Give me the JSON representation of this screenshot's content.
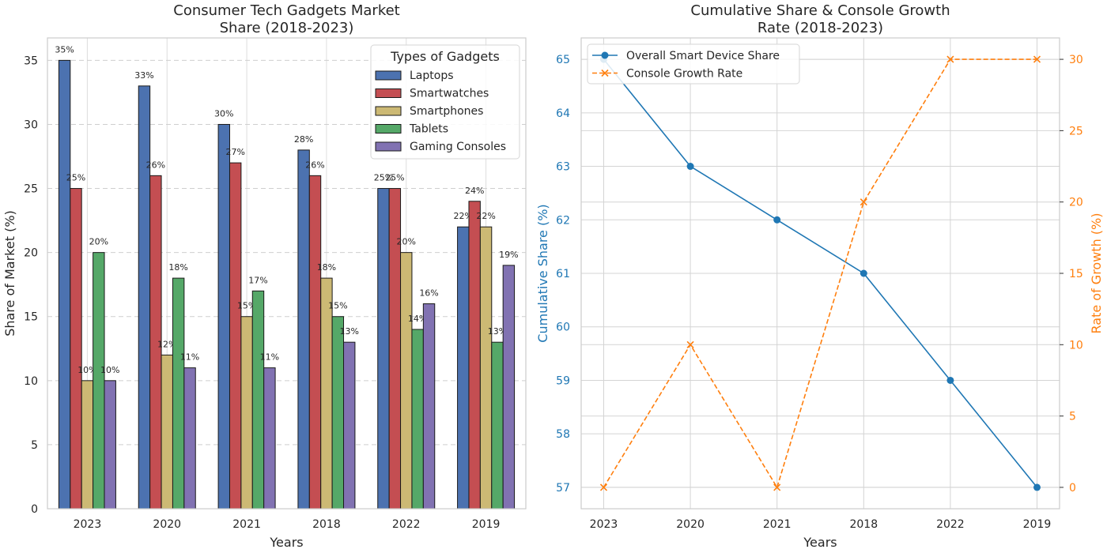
{
  "chart_data": [
    {
      "type": "bar",
      "title": "Consumer Tech Gadgets Market\nShare (2018-2023)",
      "xlabel": "Years",
      "ylabel": "Share of Market (%)",
      "categories": [
        "2023",
        "2020",
        "2021",
        "2018",
        "2022",
        "2019"
      ],
      "ylim": [
        0,
        36.75
      ],
      "yticks": [
        0,
        5,
        10,
        15,
        20,
        25,
        30,
        35
      ],
      "grid": "y-dashed",
      "legend_title": "Types of Gadgets",
      "legend_position": "top-right",
      "series": [
        {
          "name": "Laptops",
          "color": "#4c72b0",
          "values": [
            35,
            33,
            30,
            28,
            25,
            22
          ]
        },
        {
          "name": "Smartwatches",
          "color": "#c44e52",
          "values": [
            25,
            26,
            27,
            26,
            25,
            24
          ]
        },
        {
          "name": "Smartphones",
          "color": "#ccb974",
          "values": [
            10,
            12,
            15,
            18,
            20,
            22
          ]
        },
        {
          "name": "Tablets",
          "color": "#55a868",
          "values": [
            20,
            18,
            17,
            15,
            14,
            13
          ]
        },
        {
          "name": "Gaming Consoles",
          "color": "#8172b2",
          "values": [
            10,
            11,
            11,
            13,
            16,
            19
          ]
        }
      ]
    },
    {
      "type": "line",
      "title": "Cumulative Share & Console Growth\nRate (2018-2023)",
      "xlabel": "Years",
      "categories": [
        "2023",
        "2020",
        "2021",
        "2018",
        "2022",
        "2019"
      ],
      "legend_position": "top-left",
      "grid": "on",
      "left_axis": {
        "label": "Cumulative Share (%)",
        "color": "#1f77b4",
        "ylim": [
          56.6,
          65.4
        ],
        "ticks": [
          57,
          58,
          59,
          60,
          61,
          62,
          63,
          64,
          65
        ]
      },
      "right_axis": {
        "label": "Rate of Growth (%)",
        "color": "#ff7f0e",
        "ylim": [
          -1.5,
          31.5
        ],
        "ticks": [
          0,
          5,
          10,
          15,
          20,
          25,
          30
        ]
      },
      "series": [
        {
          "name": "Overall Smart Device Share",
          "axis": "left",
          "color": "#1f77b4",
          "marker": "circle",
          "linestyle": "solid",
          "values": [
            65,
            63,
            62,
            61,
            59,
            57
          ]
        },
        {
          "name": "Console Growth Rate",
          "axis": "right",
          "color": "#ff7f0e",
          "marker": "x",
          "linestyle": "dashed",
          "values": [
            0,
            10,
            0,
            20,
            30,
            30
          ]
        }
      ]
    }
  ]
}
